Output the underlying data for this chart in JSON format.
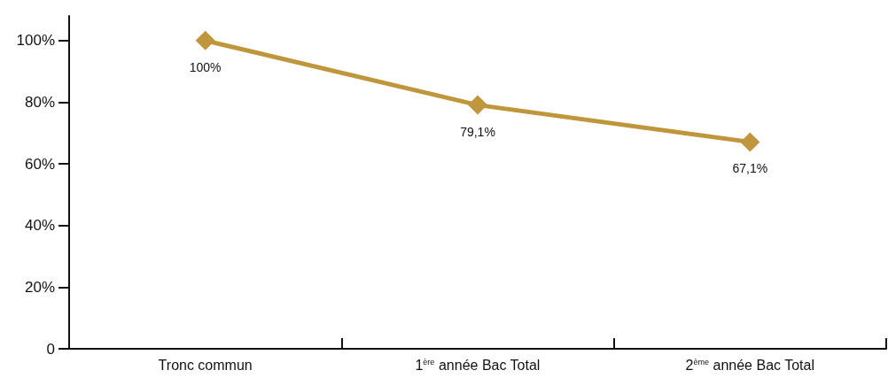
{
  "chart_data": {
    "type": "line",
    "categories": [
      "Tronc commun",
      "1$^{ère}$ année Bac Total",
      "2$^{ème}$ année Bac Total"
    ],
    "series": [
      {
        "color": "#c0963c",
        "values": [
          100,
          79.1,
          67.1
        ],
        "value_labels": [
          "100%",
          "79,1%",
          "67,1%"
        ]
      }
    ],
    "ylim": [
      0,
      108
    ],
    "yticks": [
      0,
      {
        "value": 20,
        "label": "20%"
      },
      {
        "value": 40,
        "label": "40%"
      },
      {
        "value": 60,
        "label": "60%"
      },
      {
        "value": 80,
        "label": "80%"
      },
      {
        "value": 100,
        "label": "100%"
      }
    ],
    "grid": false,
    "marker": "diamond",
    "line_style": "solid"
  }
}
